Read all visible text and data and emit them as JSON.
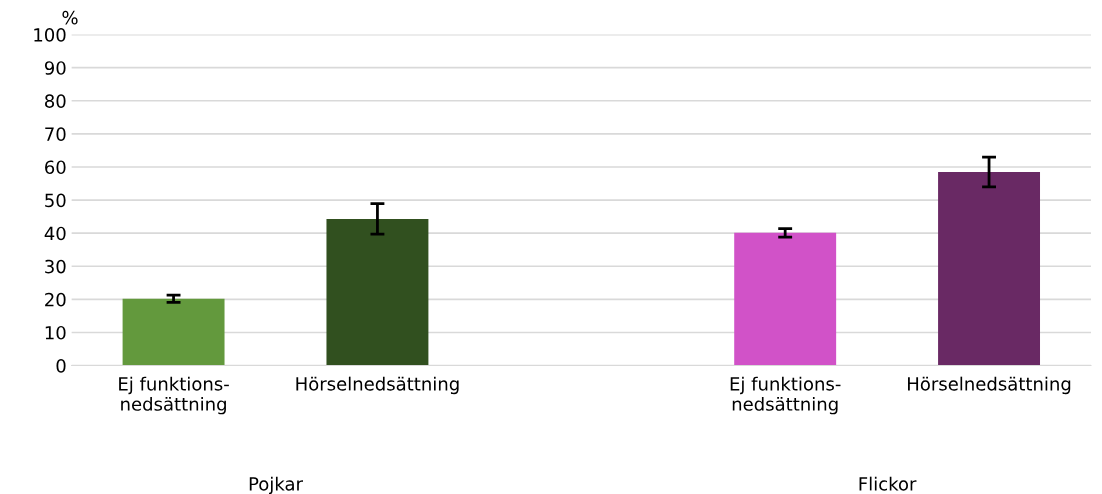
{
  "chart_data": {
    "type": "bar",
    "ylabel": "%",
    "categories": [
      "Ej funktions-\nnedsättning",
      "Hörselnedsättning",
      null,
      "Ej funktions-\nnedsättning",
      "Hörselnedsättning"
    ],
    "values": [
      20.2,
      44.3,
      null,
      40.1,
      58.5
    ],
    "errors": [
      1.1,
      4.6,
      null,
      1.3,
      4.5
    ],
    "colors": [
      "#63993d",
      "#31501f",
      null,
      "#d152c8",
      "#692964"
    ],
    "ylim": [
      0,
      100
    ],
    "yticks": [
      0,
      10,
      20,
      30,
      40,
      50,
      60,
      70,
      80,
      90,
      100
    ],
    "grid": "y",
    "annotations": [
      "Pojkar",
      "Flickor"
    ]
  }
}
